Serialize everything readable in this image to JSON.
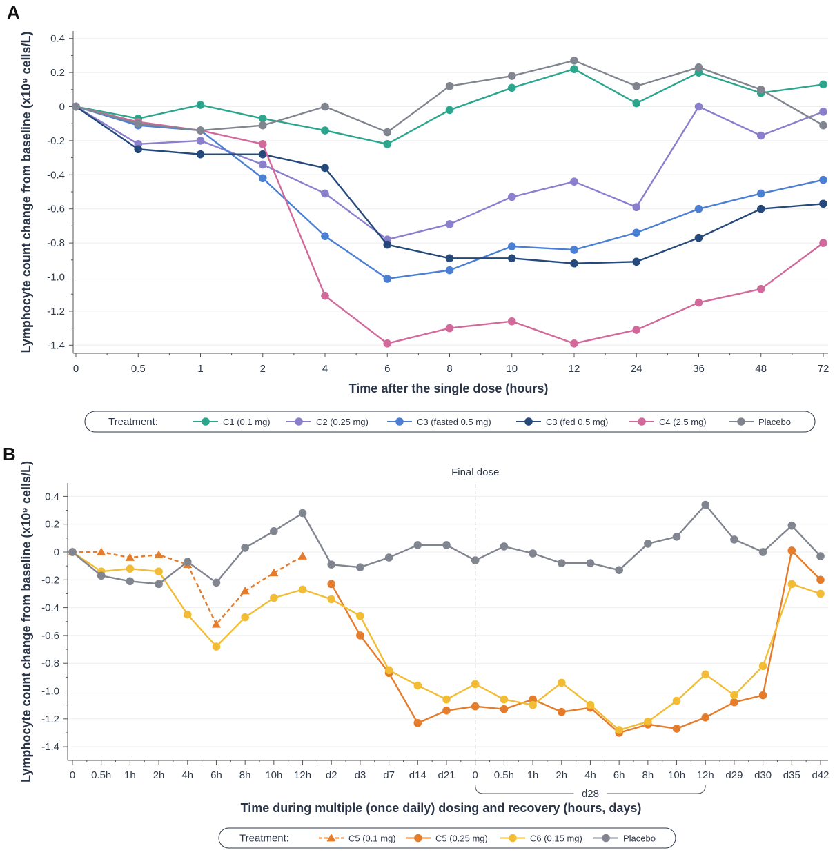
{
  "chart_data": [
    {
      "type": "line",
      "panel_label": "A",
      "xlabel": "Time after the single dose (hours)",
      "ylabel": "Lymphocyte count change from baseline (x10⁹ cells/L)",
      "ylim": [
        -1.45,
        0.45
      ],
      "yticks": [
        0.4,
        0.2,
        0,
        -0.2,
        -0.4,
        -0.6,
        -0.8,
        -1.0,
        -1.2,
        -1.4
      ],
      "ytick_labels": [
        "0.4",
        "0.2",
        "0",
        "-0.2",
        "-0.4",
        "-0.6",
        "-0.8",
        "-1.0",
        "-1.2",
        "-1.4"
      ],
      "categories": [
        "0",
        "0.5",
        "1",
        "2",
        "4",
        "6",
        "8",
        "10",
        "12",
        "24",
        "36",
        "48",
        "72"
      ],
      "legend_title": "Treatment:",
      "series": [
        {
          "name": "C1 (0.1 mg)",
          "color": "#2ca58d",
          "marker": "circle",
          "dash": false,
          "values": [
            0,
            -0.07,
            0.01,
            -0.07,
            -0.14,
            -0.22,
            -0.02,
            0.11,
            0.22,
            0.02,
            0.2,
            0.08,
            0.13
          ]
        },
        {
          "name": "C2 (0.25 mg)",
          "color": "#8a7fcd",
          "marker": "circle",
          "dash": false,
          "values": [
            0,
            -0.22,
            -0.2,
            -0.34,
            -0.51,
            -0.78,
            -0.69,
            -0.53,
            -0.44,
            -0.59,
            0,
            -0.17,
            -0.03
          ]
        },
        {
          "name": "C3 (fasted 0.5 mg)",
          "color": "#4a7fd4",
          "marker": "circle",
          "dash": false,
          "values": [
            0,
            -0.11,
            -0.14,
            -0.42,
            -0.76,
            -1.01,
            -0.96,
            -0.82,
            -0.84,
            -0.74,
            -0.6,
            -0.51,
            -0.43
          ]
        },
        {
          "name": "C3 (fed 0.5 mg)",
          "color": "#25497a",
          "marker": "circle",
          "dash": false,
          "values": [
            0,
            -0.25,
            -0.28,
            -0.28,
            -0.36,
            -0.81,
            -0.89,
            -0.89,
            -0.92,
            -0.91,
            -0.77,
            -0.6,
            -0.57
          ]
        },
        {
          "name": "C4 (2.5 mg)",
          "color": "#d2699b",
          "marker": "circle",
          "dash": false,
          "values": [
            0,
            -0.09,
            -0.14,
            -0.22,
            -1.11,
            -1.39,
            -1.3,
            -1.26,
            -1.39,
            -1.31,
            -1.15,
            -1.07,
            -0.8
          ]
        },
        {
          "name": "Placebo",
          "color": "#808590",
          "marker": "circle",
          "dash": false,
          "values": [
            0,
            -0.1,
            -0.14,
            -0.11,
            0,
            -0.15,
            0.12,
            0.18,
            0.27,
            0.12,
            0.23,
            0.1,
            -0.11
          ]
        }
      ]
    },
    {
      "type": "line",
      "panel_label": "B",
      "xlabel": "Time during multiple (once daily) dosing and recovery (hours, days)",
      "ylabel": "Lymphocyte count change from baseline (x10⁹ cells/L)",
      "ylim": [
        -1.5,
        0.5
      ],
      "yticks": [
        0.4,
        0.2,
        0,
        -0.2,
        -0.4,
        -0.6,
        -0.8,
        -1.0,
        -1.2,
        -1.4
      ],
      "ytick_labels": [
        "0.4",
        "0.2",
        "0",
        "-0.2",
        "-0.4",
        "-0.6",
        "-0.8",
        "-1.0",
        "-1.2",
        "-1.4"
      ],
      "categories": [
        "0",
        "0.5h",
        "1h",
        "2h",
        "4h",
        "6h",
        "8h",
        "10h",
        "12h",
        "d2",
        "d3",
        "d7",
        "d14",
        "d21",
        "0",
        "0.5h",
        "1h",
        "2h",
        "4h",
        "6h",
        "8h",
        "10h",
        "12h",
        "d29",
        "d30",
        "d35",
        "d42"
      ],
      "bracket_label": "d28",
      "annotation": "Final dose",
      "legend_title": "Treatment:",
      "series": [
        {
          "name": "C5 (0.1 mg)",
          "color": "#e47c2b",
          "marker": "triangle",
          "dash": true,
          "values": [
            0,
            0,
            -0.04,
            -0.02,
            -0.09,
            -0.52,
            -0.28,
            -0.15,
            -0.03,
            null,
            null,
            null,
            null,
            null,
            null,
            null,
            null,
            null,
            null,
            null,
            null,
            null,
            null,
            null,
            null,
            null,
            null
          ]
        },
        {
          "name": "C5 (0.25 mg)",
          "color": "#e47c2b",
          "marker": "circle",
          "dash": false,
          "values": [
            null,
            null,
            null,
            null,
            null,
            null,
            null,
            null,
            null,
            -0.23,
            -0.6,
            -0.87,
            -1.23,
            -1.14,
            -1.11,
            -1.13,
            -1.06,
            -1.15,
            -1.12,
            -1.3,
            -1.24,
            -1.27,
            -1.19,
            -1.08,
            -1.03,
            0.01,
            -0.2
          ]
        },
        {
          "name": "C6 (0.15 mg)",
          "color": "#f2bd35",
          "marker": "circle",
          "dash": false,
          "values": [
            0,
            -0.14,
            -0.12,
            -0.14,
            -0.45,
            -0.68,
            -0.47,
            -0.33,
            -0.27,
            -0.34,
            -0.46,
            -0.85,
            -0.96,
            -1.06,
            -0.95,
            -1.06,
            -1.1,
            -0.94,
            -1.1,
            -1.28,
            -1.22,
            -1.07,
            -0.88,
            -1.03,
            -0.82,
            -0.23,
            -0.3
          ]
        },
        {
          "name": "Placebo",
          "color": "#808590",
          "marker": "circle",
          "dash": false,
          "values": [
            0,
            -0.17,
            -0.21,
            -0.23,
            -0.07,
            -0.22,
            0.03,
            0.15,
            0.28,
            -0.09,
            -0.11,
            -0.04,
            0.05,
            0.05,
            -0.06,
            0.04,
            -0.01,
            -0.08,
            -0.08,
            -0.13,
            0.06,
            0.11,
            0.34,
            0.09,
            0,
            0.19,
            -0.03
          ]
        }
      ]
    }
  ]
}
